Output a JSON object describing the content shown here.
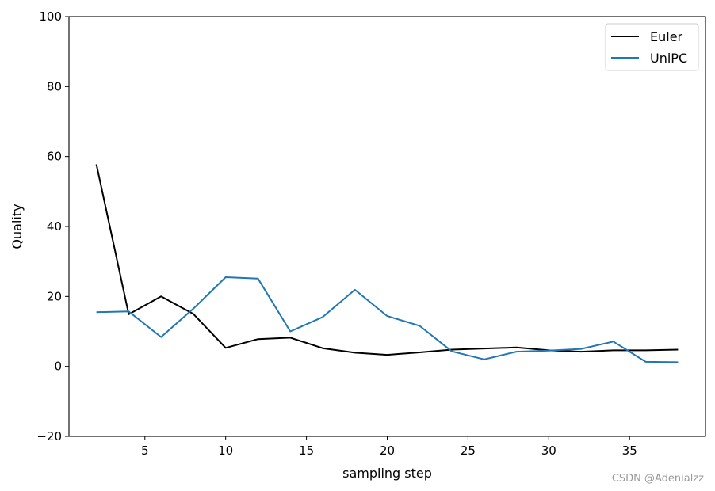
{
  "chart_data": {
    "type": "line",
    "title": "",
    "xlabel": "sampling step",
    "ylabel": "Quality",
    "xlim": [
      0.3,
      39.7
    ],
    "ylim": [
      -20,
      100
    ],
    "x_ticks": [
      5,
      10,
      15,
      20,
      25,
      30,
      35
    ],
    "y_ticks": [
      -20,
      0,
      20,
      40,
      60,
      80,
      100
    ],
    "grid": false,
    "legend_position": "top-right",
    "x": [
      2,
      4,
      6,
      8,
      10,
      12,
      14,
      16,
      18,
      20,
      22,
      24,
      26,
      28,
      30,
      32,
      34,
      36,
      38
    ],
    "series": [
      {
        "name": "Euler",
        "color": "#000000",
        "values": [
          57.8,
          14.9,
          20.0,
          15.0,
          5.3,
          7.8,
          8.2,
          5.2,
          3.9,
          3.3,
          4.0,
          4.8,
          5.1,
          5.4,
          4.6,
          4.2,
          4.6,
          4.6,
          4.8
        ]
      },
      {
        "name": "UniPC",
        "color": "#1f77b4",
        "values": [
          15.5,
          15.7,
          8.4,
          16.5,
          25.5,
          25.1,
          10.0,
          14.1,
          21.9,
          14.4,
          11.6,
          4.3,
          2.0,
          4.2,
          4.5,
          5.0,
          7.1,
          1.3,
          1.2
        ]
      }
    ]
  },
  "watermark": "CSDN @Adenialzz"
}
